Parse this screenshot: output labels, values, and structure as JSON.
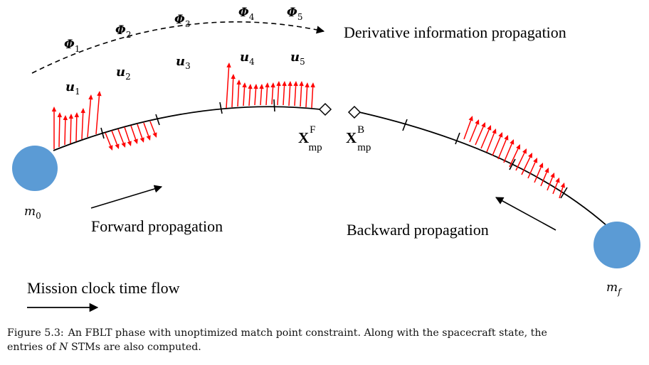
{
  "stms": [
    {
      "symbol": "Φ",
      "index": "1"
    },
    {
      "symbol": "Φ",
      "index": "2"
    },
    {
      "symbol": "Φ",
      "index": "3"
    },
    {
      "symbol": "Φ",
      "index": "4"
    },
    {
      "symbol": "Φ",
      "index": "5"
    }
  ],
  "controls": [
    {
      "symbol": "u",
      "index": "1"
    },
    {
      "symbol": "u",
      "index": "2"
    },
    {
      "symbol": "u",
      "index": "3"
    },
    {
      "symbol": "u",
      "index": "4"
    },
    {
      "symbol": "u",
      "index": "5"
    }
  ],
  "labels": {
    "derivative": "Derivative information propagation",
    "forward": "Forward propagation",
    "backward": "Backward propagation",
    "mission_clock": "Mission clock time flow"
  },
  "match_points": {
    "forward": {
      "base": "X",
      "sup": "F",
      "sub": "mp"
    },
    "backward": {
      "base": "X",
      "sup": "B",
      "sub": "mp"
    }
  },
  "bodies": {
    "start": {
      "base": "m",
      "sub": "0"
    },
    "end": {
      "base": "m",
      "sub": "f"
    }
  },
  "caption": {
    "figure_label": "Figure 5.3:",
    "line1_prefix": "An FBLT phase with unoptimized match point constraint. Along with the spacecraft state, the",
    "line2_pre": "entries of ",
    "line2_var": "N",
    "line2_post": " STMs are also computed."
  },
  "colors": {
    "body": "#5b9bd5",
    "thrust_arrow": "#ff0000",
    "line": "#000000"
  }
}
